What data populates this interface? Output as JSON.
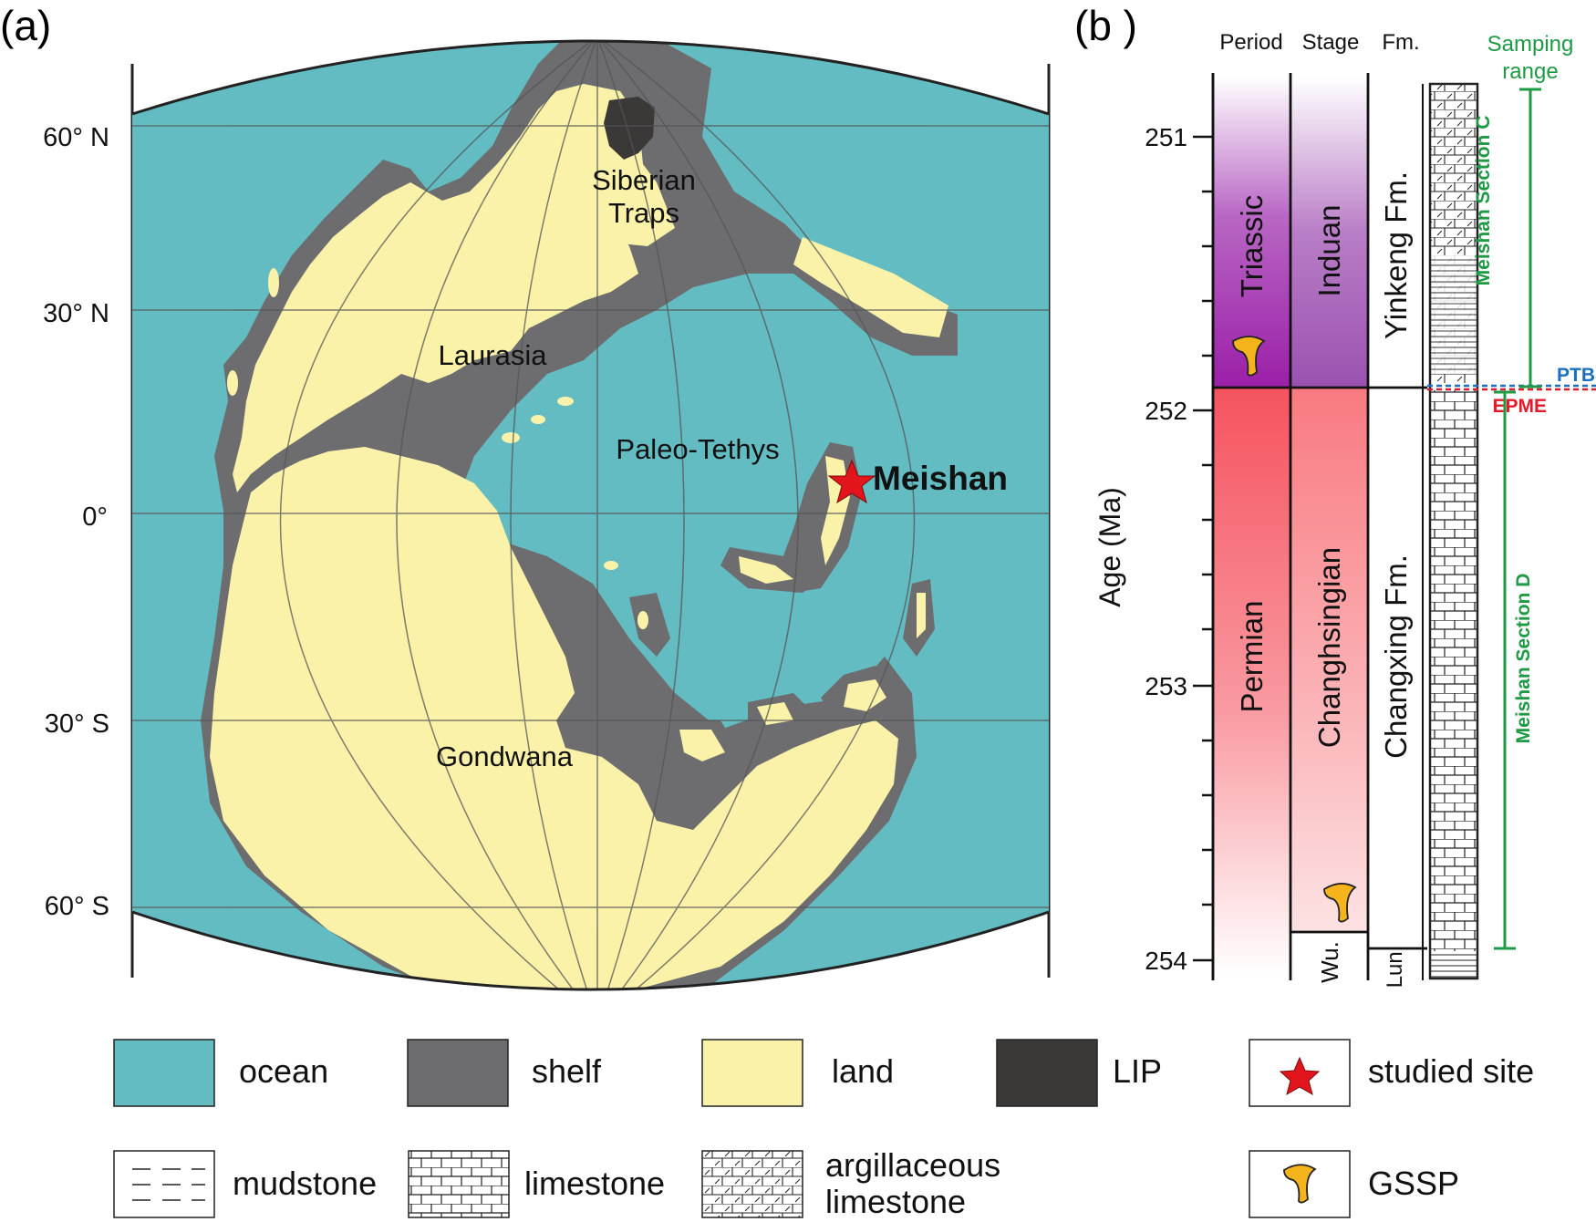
{
  "panel_a": {
    "label": "(a)",
    "latitudes": [
      "60° N",
      "30° N",
      "0°",
      "30° S",
      "60° S"
    ],
    "regions": {
      "siberian_traps_1": "Siberian",
      "siberian_traps_2": "Traps",
      "laurasia": "Laurasia",
      "paleo_tethys": "Paleo-Tethys",
      "gondwana": "Gondwana"
    },
    "site": "Meishan"
  },
  "panel_b": {
    "label": "(b )",
    "headers": {
      "period": "Period",
      "stage": "Stage",
      "fm": "Fm."
    },
    "sampling_line1": "Samping",
    "sampling_line2": "range",
    "axis_label": "Age (Ma)",
    "ticks": [
      "251",
      "252",
      "253",
      "254"
    ],
    "periods": {
      "upper": "Triassic",
      "lower": "Permian"
    },
    "stages": {
      "upper": "Induan",
      "middle": "Changhsingian",
      "lower": "Wu."
    },
    "formations": {
      "upper": "Yinkeng Fm.",
      "middle": "Changxing Fm.",
      "lower": "Lun."
    },
    "sections": {
      "c": "Meishan Section C",
      "d": "Meishan Section D"
    },
    "ptb": "PTB",
    "epme": "EPME"
  },
  "legend": {
    "ocean": "ocean",
    "shelf": "shelf",
    "land": "land",
    "lip": "LIP",
    "studied_site": "studied site",
    "mudstone": "mudstone",
    "limestone": "limestone",
    "arg_line1": "argillaceous",
    "arg_line2": "limestone",
    "gssp": "GSSP"
  },
  "colors": {
    "ocean": "#63bcc2",
    "shelf": "#6d6d6f",
    "land": "#fbf2a9",
    "lip": "#3b3838",
    "star": "#e2141c",
    "gssp": "#f5b41c",
    "triassic": "#9b1fa8",
    "permian": "#f5535f",
    "green": "#1e9a45",
    "ptb_blue": "#1a6fc0",
    "epme_red": "#e11b2a"
  }
}
